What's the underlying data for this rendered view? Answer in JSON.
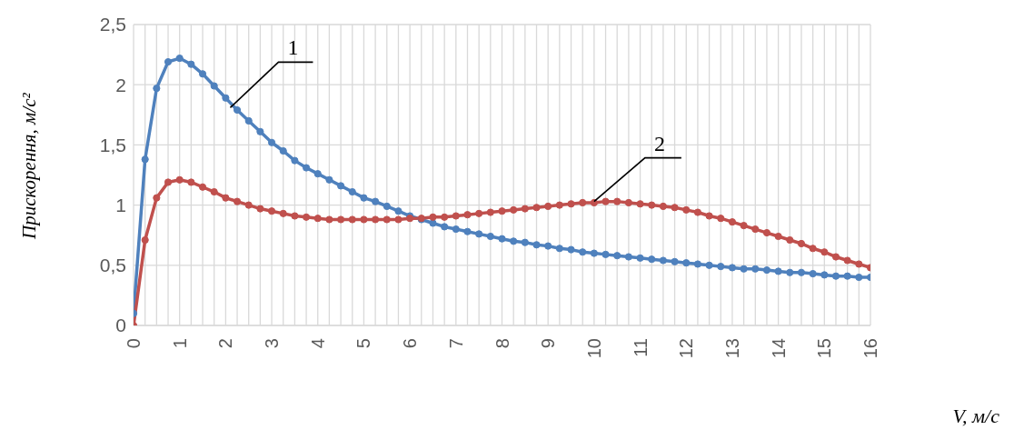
{
  "chart_data": {
    "type": "line",
    "xlabel": "V, м/с",
    "ylabel": "Прискорення, м/с²",
    "x": [
      0,
      0.25,
      0.5,
      0.75,
      1,
      1.25,
      1.5,
      1.75,
      2,
      2.25,
      2.5,
      2.75,
      3,
      3.25,
      3.5,
      3.75,
      4,
      4.25,
      4.5,
      4.75,
      5,
      5.25,
      5.5,
      5.75,
      6,
      6.25,
      6.5,
      6.75,
      7,
      7.25,
      7.5,
      7.75,
      8,
      8.25,
      8.5,
      8.75,
      9,
      9.25,
      9.5,
      9.75,
      10,
      10.25,
      10.5,
      10.75,
      11,
      11.25,
      11.5,
      11.75,
      12,
      12.25,
      12.5,
      12.75,
      13,
      13.25,
      13.5,
      13.75,
      14,
      14.25,
      14.5,
      14.75,
      15,
      15.25,
      15.5,
      15.75,
      16
    ],
    "series": [
      {
        "color": "#4f81bd",
        "values": [
          0.1,
          1.38,
          1.97,
          2.19,
          2.22,
          2.17,
          2.09,
          1.99,
          1.89,
          1.79,
          1.7,
          1.61,
          1.52,
          1.45,
          1.37,
          1.31,
          1.26,
          1.21,
          1.16,
          1.11,
          1.06,
          1.03,
          0.99,
          0.95,
          0.91,
          0.88,
          0.85,
          0.82,
          0.8,
          0.78,
          0.76,
          0.74,
          0.72,
          0.7,
          0.69,
          0.67,
          0.66,
          0.64,
          0.63,
          0.61,
          0.6,
          0.59,
          0.58,
          0.57,
          0.56,
          0.55,
          0.54,
          0.53,
          0.52,
          0.51,
          0.5,
          0.49,
          0.48,
          0.47,
          0.47,
          0.46,
          0.45,
          0.44,
          0.44,
          0.43,
          0.42,
          0.41,
          0.41,
          0.4,
          0.4
        ]
      },
      {
        "color": "#c0504d",
        "values": [
          0,
          0.71,
          1.06,
          1.19,
          1.21,
          1.19,
          1.15,
          1.11,
          1.06,
          1.03,
          1,
          0.97,
          0.95,
          0.93,
          0.91,
          0.9,
          0.89,
          0.88,
          0.88,
          0.88,
          0.88,
          0.88,
          0.88,
          0.88,
          0.89,
          0.89,
          0.9,
          0.9,
          0.91,
          0.92,
          0.93,
          0.94,
          0.95,
          0.96,
          0.97,
          0.98,
          0.99,
          1,
          1.01,
          1.02,
          1.02,
          1.03,
          1.03,
          1.02,
          1.01,
          1,
          0.99,
          0.98,
          0.96,
          0.94,
          0.91,
          0.89,
          0.86,
          0.83,
          0.8,
          0.77,
          0.74,
          0.71,
          0.68,
          0.64,
          0.61,
          0.57,
          0.54,
          0.51,
          0.48
        ]
      }
    ],
    "xlim": [
      0,
      16
    ],
    "xticks": [
      0,
      {
        "value": 0.25,
        "label": null
      },
      {
        "value": 0.5,
        "label": null
      },
      {
        "value": 0.75,
        "label": null
      },
      1,
      {
        "value": 1.25,
        "label": null
      },
      {
        "value": 1.5,
        "label": null
      },
      {
        "value": 1.75,
        "label": null
      },
      2,
      {
        "value": 2.25,
        "label": null
      },
      {
        "value": 2.5,
        "label": null
      },
      {
        "value": 2.75,
        "label": null
      },
      3,
      {
        "value": 3.25,
        "label": null
      },
      {
        "value": 3.5,
        "label": null
      },
      {
        "value": 3.75,
        "label": null
      },
      4,
      {
        "value": 4.25,
        "label": null
      },
      {
        "value": 4.5,
        "label": null
      },
      {
        "value": 4.75,
        "label": null
      },
      5,
      {
        "value": 5.25,
        "label": null
      },
      {
        "value": 5.5,
        "label": null
      },
      {
        "value": 5.75,
        "label": null
      },
      6,
      {
        "value": 6.25,
        "label": null
      },
      {
        "value": 6.5,
        "label": null
      },
      {
        "value": 6.75,
        "label": null
      },
      7,
      {
        "value": 7.25,
        "label": null
      },
      {
        "value": 7.5,
        "label": null
      },
      {
        "value": 7.75,
        "label": null
      },
      8,
      {
        "value": 8.25,
        "label": null
      },
      {
        "value": 8.5,
        "label": null
      },
      {
        "value": 8.75,
        "label": null
      },
      9,
      {
        "value": 9.25,
        "label": null
      },
      {
        "value": 9.5,
        "label": null
      },
      {
        "value": 9.75,
        "label": null
      },
      10,
      {
        "value": 10.25,
        "label": null
      },
      {
        "value": 10.5,
        "label": null
      },
      {
        "value": 10.75,
        "label": null
      },
      11,
      {
        "value": 11.25,
        "label": null
      },
      {
        "value": 11.5,
        "label": null
      },
      {
        "value": 11.75,
        "label": null
      },
      12,
      {
        "value": 12.25,
        "label": null
      },
      {
        "value": 12.5,
        "label": null
      },
      {
        "value": 12.75,
        "label": null
      },
      13,
      {
        "value": 13.25,
        "label": null
      },
      {
        "value": 13.5,
        "label": null
      },
      {
        "value": 13.75,
        "label": null
      },
      14,
      {
        "value": 14.25,
        "label": null
      },
      {
        "value": 14.5,
        "label": null
      },
      {
        "value": 14.75,
        "label": null
      },
      15,
      {
        "value": 15.25,
        "label": null
      },
      {
        "value": 15.5,
        "label": null
      },
      {
        "value": 15.75,
        "label": null
      },
      16
    ],
    "ylim": [
      0,
      2.5
    ],
    "yticks": [
      0,
      {
        "value": 0.5,
        "label": "0,5"
      },
      1,
      {
        "value": 1.5,
        "label": "1,5"
      },
      2,
      {
        "value": 2.5,
        "label": "2,5"
      }
    ],
    "annotations": [
      {
        "text": "1",
        "x": 2.1,
        "y": 1.81
      },
      {
        "text": "2",
        "x": 10,
        "y": 1.03
      }
    ],
    "grid": true,
    "legend": false,
    "marker": "circle",
    "line_style": "solid"
  }
}
